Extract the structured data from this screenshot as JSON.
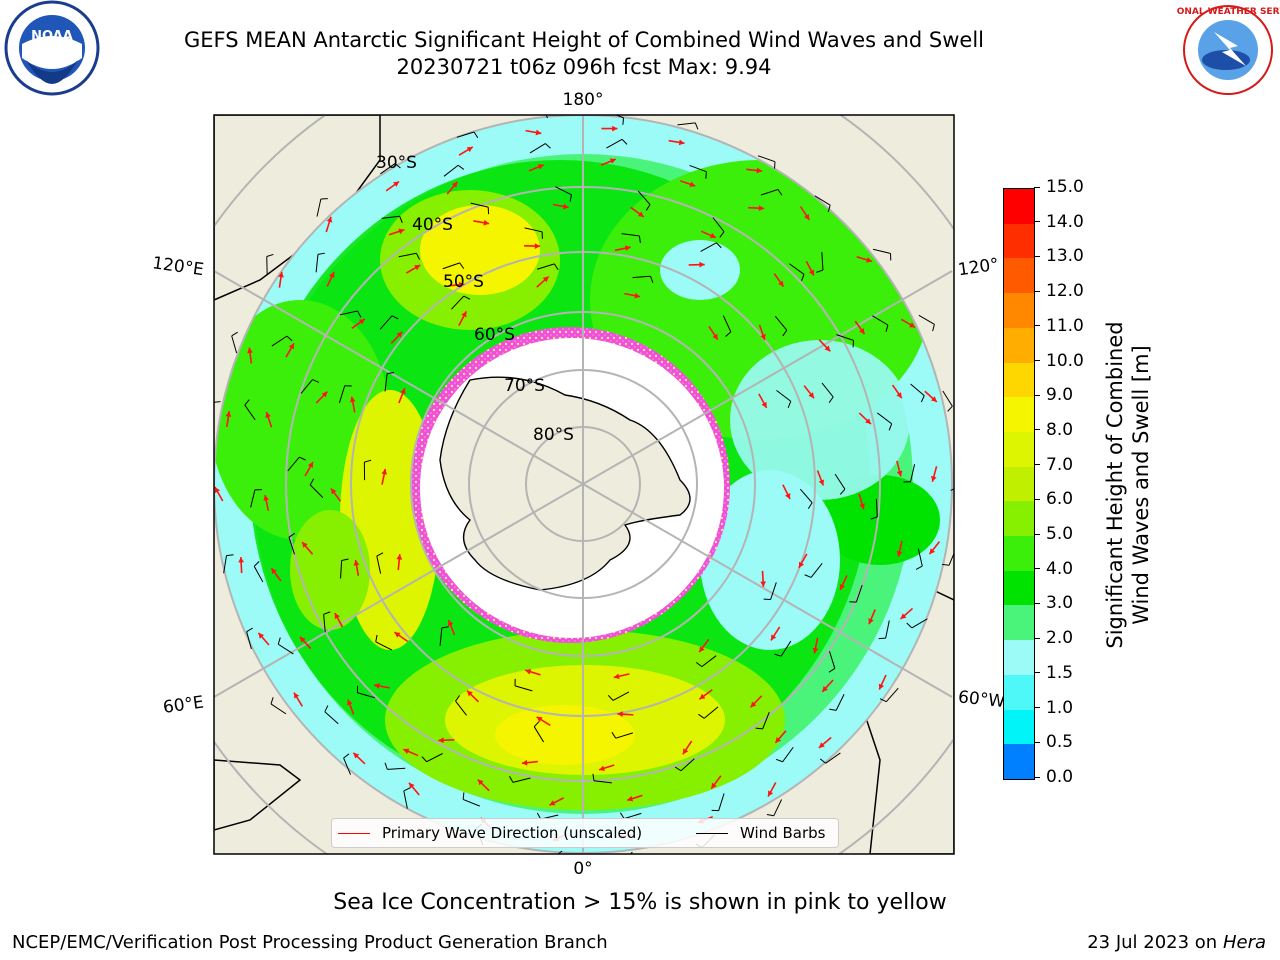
{
  "title": {
    "line1": "GEFS MEAN Antarctic Significant Height of Combined Wind Waves and Swell",
    "line2": "20230721 t06z 096h fcst   Max: 9.94"
  },
  "logos": {
    "left": "noaa-logo",
    "right": "nws-logo",
    "right_text": "NATIONAL WEATHER SERVICE"
  },
  "map": {
    "projection": "south-polar-stereographic",
    "longitude_labels": {
      "top": "180°",
      "bottom": "0°",
      "left_upper": "120°E",
      "left_lower": "60°E",
      "right_upper": "120°",
      "right_lower": "60°W"
    },
    "latitude_labels": [
      "30°S",
      "40°S",
      "50°S",
      "60°S",
      "70°S",
      "80°S"
    ],
    "colors": {
      "land": "#eeecdc",
      "ice_shelf": "#ffffff",
      "sea_ice_edge": "#f04ee0",
      "wave_arrow": "#ff1414",
      "wind_barb": "#000000",
      "graticule": "#b4b4b4"
    }
  },
  "legend": {
    "items": [
      {
        "label": "Primary Wave Direction (unscaled)",
        "color": "#ff0000"
      },
      {
        "label": "Wind Barbs",
        "color": "#000000"
      }
    ]
  },
  "colorbar": {
    "label": "Significant Height of Combined Wind Waves and Swell [m]",
    "label_line1": "Significant Height of Combined",
    "label_line2": "Wind Waves and Swell [m]",
    "ticks": [
      "15.0",
      "14.0",
      "13.0",
      "12.0",
      "11.0",
      "10.0",
      "9.0",
      "8.0",
      "7.0",
      "6.0",
      "5.0",
      "4.0",
      "3.0",
      "2.0",
      "1.5",
      "1.0",
      "0.5",
      "0.0"
    ],
    "colors_top_to_bottom": [
      "#ff0000",
      "#ff2e00",
      "#ff5a00",
      "#ff8800",
      "#ffae00",
      "#ffd700",
      "#f5f500",
      "#ddf500",
      "#c0f000",
      "#86f000",
      "#3cef0a",
      "#00e300",
      "#4af47a",
      "#9cfaf7",
      "#4ff8f8",
      "#00f4f8",
      "#0080ff",
      "#0000ff"
    ],
    "boundaries": [
      0.0,
      0.5,
      1.0,
      1.5,
      2.0,
      3.0,
      4.0,
      5.0,
      6.0,
      7.0,
      8.0,
      9.0,
      10.0,
      11.0,
      12.0,
      13.0,
      14.0,
      15.0
    ]
  },
  "notes": {
    "sea_ice": "Sea Ice Concentration > 15% is shown in pink to yellow",
    "credit": "NCEP/EMC/Verification Post Processing Product Generation Branch",
    "date": "23 Jul 2023 on ",
    "host": "Hera"
  }
}
